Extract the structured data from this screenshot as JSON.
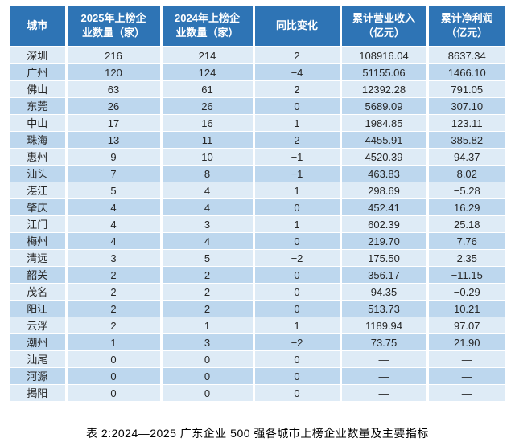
{
  "chart_data": {
    "type": "table",
    "title": "表 2:2024—2025 广东企业 500 强各城市上榜企业数量及主要指标",
    "columns": [
      "城市",
      "2025年上榜企\n业数量（家）",
      "2024年上榜企\n业数量（家）",
      "同比变化",
      "累计营业收入\n（亿元）",
      "累计净利润\n（亿元）"
    ],
    "rows": [
      [
        "深圳",
        "216",
        "214",
        "2",
        "108916.04",
        "8637.34"
      ],
      [
        "广州",
        "120",
        "124",
        "−4",
        "51155.06",
        "1466.10"
      ],
      [
        "佛山",
        "63",
        "61",
        "2",
        "12392.28",
        "791.05"
      ],
      [
        "东莞",
        "26",
        "26",
        "0",
        "5689.09",
        "307.10"
      ],
      [
        "中山",
        "17",
        "16",
        "1",
        "1984.85",
        "123.11"
      ],
      [
        "珠海",
        "13",
        "11",
        "2",
        "4455.91",
        "385.82"
      ],
      [
        "惠州",
        "9",
        "10",
        "−1",
        "4520.39",
        "94.37"
      ],
      [
        "汕头",
        "7",
        "8",
        "−1",
        "463.83",
        "8.02"
      ],
      [
        "湛江",
        "5",
        "4",
        "1",
        "298.69",
        "−5.28"
      ],
      [
        "肇庆",
        "4",
        "4",
        "0",
        "452.41",
        "16.29"
      ],
      [
        "江门",
        "4",
        "3",
        "1",
        "602.39",
        "25.18"
      ],
      [
        "梅州",
        "4",
        "4",
        "0",
        "219.70",
        "7.76"
      ],
      [
        "清远",
        "3",
        "5",
        "−2",
        "175.50",
        "2.35"
      ],
      [
        "韶关",
        "2",
        "2",
        "0",
        "356.17",
        "−11.15"
      ],
      [
        "茂名",
        "2",
        "2",
        "0",
        "94.35",
        "−0.29"
      ],
      [
        "阳江",
        "2",
        "2",
        "0",
        "513.73",
        "10.21"
      ],
      [
        "云浮",
        "2",
        "1",
        "1",
        "1189.94",
        "97.07"
      ],
      [
        "潮州",
        "1",
        "3",
        "−2",
        "73.75",
        "21.90"
      ],
      [
        "汕尾",
        "0",
        "0",
        "0",
        "—",
        "—"
      ],
      [
        "河源",
        "0",
        "0",
        "0",
        "—",
        "—"
      ],
      [
        "揭阳",
        "0",
        "0",
        "0",
        "—",
        "—"
      ]
    ]
  },
  "caption": "表 2:2024—2025 广东企业 500 强各城市上榜企业数量及主要指标",
  "colors": {
    "header_bg": "#2E74B5",
    "header_text": "#FFFFFF",
    "row_light": "#DEEBF6",
    "row_dark": "#BDD7EE",
    "body_text": "#262626",
    "caption_text": "#000000"
  }
}
